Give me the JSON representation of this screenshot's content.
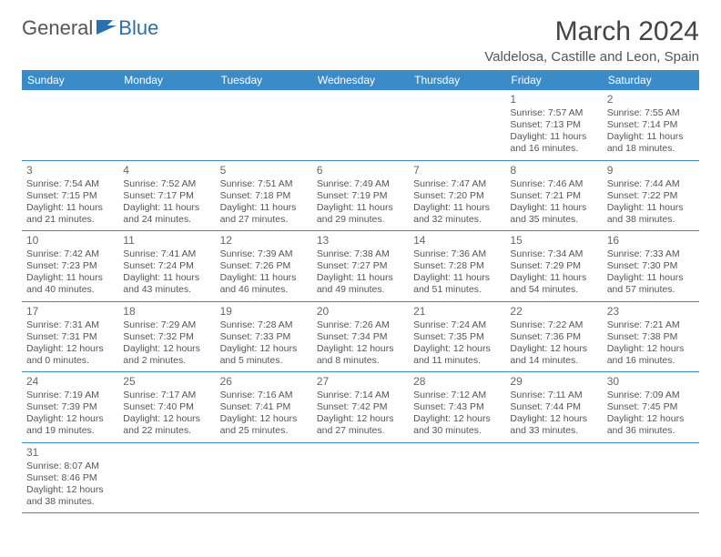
{
  "logo": {
    "general": "General",
    "blue": "Blue"
  },
  "title": "March 2024",
  "location": "Valdelosa, Castille and Leon, Spain",
  "colors": {
    "header_bg": "#3b8bc8",
    "header_text": "#ffffff",
    "border": "#3b8bc8",
    "logo_blue": "#2f6fa8",
    "text": "#555555",
    "background": "#ffffff"
  },
  "daynames": [
    "Sunday",
    "Monday",
    "Tuesday",
    "Wednesday",
    "Thursday",
    "Friday",
    "Saturday"
  ],
  "weeks": [
    [
      null,
      null,
      null,
      null,
      null,
      {
        "n": "1",
        "sr": "Sunrise: 7:57 AM",
        "ss": "Sunset: 7:13 PM",
        "dl": "Daylight: 11 hours and 16 minutes."
      },
      {
        "n": "2",
        "sr": "Sunrise: 7:55 AM",
        "ss": "Sunset: 7:14 PM",
        "dl": "Daylight: 11 hours and 18 minutes."
      }
    ],
    [
      {
        "n": "3",
        "sr": "Sunrise: 7:54 AM",
        "ss": "Sunset: 7:15 PM",
        "dl": "Daylight: 11 hours and 21 minutes."
      },
      {
        "n": "4",
        "sr": "Sunrise: 7:52 AM",
        "ss": "Sunset: 7:17 PM",
        "dl": "Daylight: 11 hours and 24 minutes."
      },
      {
        "n": "5",
        "sr": "Sunrise: 7:51 AM",
        "ss": "Sunset: 7:18 PM",
        "dl": "Daylight: 11 hours and 27 minutes."
      },
      {
        "n": "6",
        "sr": "Sunrise: 7:49 AM",
        "ss": "Sunset: 7:19 PM",
        "dl": "Daylight: 11 hours and 29 minutes."
      },
      {
        "n": "7",
        "sr": "Sunrise: 7:47 AM",
        "ss": "Sunset: 7:20 PM",
        "dl": "Daylight: 11 hours and 32 minutes."
      },
      {
        "n": "8",
        "sr": "Sunrise: 7:46 AM",
        "ss": "Sunset: 7:21 PM",
        "dl": "Daylight: 11 hours and 35 minutes."
      },
      {
        "n": "9",
        "sr": "Sunrise: 7:44 AM",
        "ss": "Sunset: 7:22 PM",
        "dl": "Daylight: 11 hours and 38 minutes."
      }
    ],
    [
      {
        "n": "10",
        "sr": "Sunrise: 7:42 AM",
        "ss": "Sunset: 7:23 PM",
        "dl": "Daylight: 11 hours and 40 minutes."
      },
      {
        "n": "11",
        "sr": "Sunrise: 7:41 AM",
        "ss": "Sunset: 7:24 PM",
        "dl": "Daylight: 11 hours and 43 minutes."
      },
      {
        "n": "12",
        "sr": "Sunrise: 7:39 AM",
        "ss": "Sunset: 7:26 PM",
        "dl": "Daylight: 11 hours and 46 minutes."
      },
      {
        "n": "13",
        "sr": "Sunrise: 7:38 AM",
        "ss": "Sunset: 7:27 PM",
        "dl": "Daylight: 11 hours and 49 minutes."
      },
      {
        "n": "14",
        "sr": "Sunrise: 7:36 AM",
        "ss": "Sunset: 7:28 PM",
        "dl": "Daylight: 11 hours and 51 minutes."
      },
      {
        "n": "15",
        "sr": "Sunrise: 7:34 AM",
        "ss": "Sunset: 7:29 PM",
        "dl": "Daylight: 11 hours and 54 minutes."
      },
      {
        "n": "16",
        "sr": "Sunrise: 7:33 AM",
        "ss": "Sunset: 7:30 PM",
        "dl": "Daylight: 11 hours and 57 minutes."
      }
    ],
    [
      {
        "n": "17",
        "sr": "Sunrise: 7:31 AM",
        "ss": "Sunset: 7:31 PM",
        "dl": "Daylight: 12 hours and 0 minutes."
      },
      {
        "n": "18",
        "sr": "Sunrise: 7:29 AM",
        "ss": "Sunset: 7:32 PM",
        "dl": "Daylight: 12 hours and 2 minutes."
      },
      {
        "n": "19",
        "sr": "Sunrise: 7:28 AM",
        "ss": "Sunset: 7:33 PM",
        "dl": "Daylight: 12 hours and 5 minutes."
      },
      {
        "n": "20",
        "sr": "Sunrise: 7:26 AM",
        "ss": "Sunset: 7:34 PM",
        "dl": "Daylight: 12 hours and 8 minutes."
      },
      {
        "n": "21",
        "sr": "Sunrise: 7:24 AM",
        "ss": "Sunset: 7:35 PM",
        "dl": "Daylight: 12 hours and 11 minutes."
      },
      {
        "n": "22",
        "sr": "Sunrise: 7:22 AM",
        "ss": "Sunset: 7:36 PM",
        "dl": "Daylight: 12 hours and 14 minutes."
      },
      {
        "n": "23",
        "sr": "Sunrise: 7:21 AM",
        "ss": "Sunset: 7:38 PM",
        "dl": "Daylight: 12 hours and 16 minutes."
      }
    ],
    [
      {
        "n": "24",
        "sr": "Sunrise: 7:19 AM",
        "ss": "Sunset: 7:39 PM",
        "dl": "Daylight: 12 hours and 19 minutes."
      },
      {
        "n": "25",
        "sr": "Sunrise: 7:17 AM",
        "ss": "Sunset: 7:40 PM",
        "dl": "Daylight: 12 hours and 22 minutes."
      },
      {
        "n": "26",
        "sr": "Sunrise: 7:16 AM",
        "ss": "Sunset: 7:41 PM",
        "dl": "Daylight: 12 hours and 25 minutes."
      },
      {
        "n": "27",
        "sr": "Sunrise: 7:14 AM",
        "ss": "Sunset: 7:42 PM",
        "dl": "Daylight: 12 hours and 27 minutes."
      },
      {
        "n": "28",
        "sr": "Sunrise: 7:12 AM",
        "ss": "Sunset: 7:43 PM",
        "dl": "Daylight: 12 hours and 30 minutes."
      },
      {
        "n": "29",
        "sr": "Sunrise: 7:11 AM",
        "ss": "Sunset: 7:44 PM",
        "dl": "Daylight: 12 hours and 33 minutes."
      },
      {
        "n": "30",
        "sr": "Sunrise: 7:09 AM",
        "ss": "Sunset: 7:45 PM",
        "dl": "Daylight: 12 hours and 36 minutes."
      }
    ],
    [
      {
        "n": "31",
        "sr": "Sunrise: 8:07 AM",
        "ss": "Sunset: 8:46 PM",
        "dl": "Daylight: 12 hours and 38 minutes."
      },
      null,
      null,
      null,
      null,
      null,
      null
    ]
  ]
}
